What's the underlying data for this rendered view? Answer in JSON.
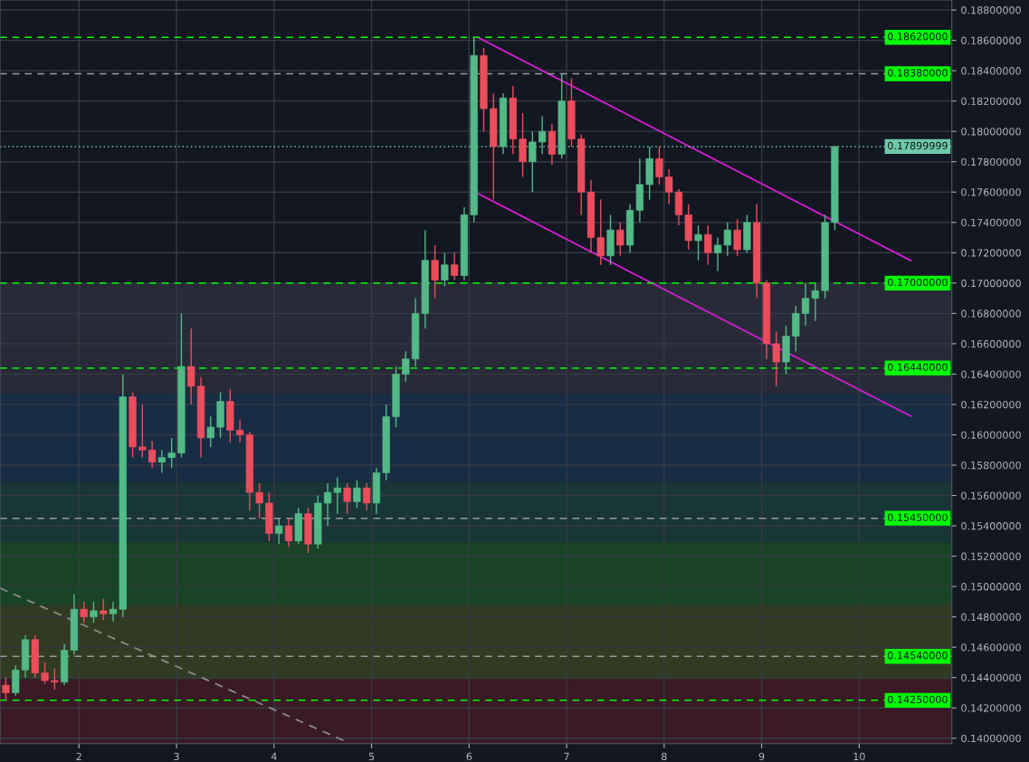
{
  "chart_data": {
    "type": "candlestick",
    "xlim": [
      1.19,
      10.95
    ],
    "xticks": [
      2,
      3,
      4,
      5,
      6,
      7,
      8,
      9,
      10
    ],
    "ylim": [
      0.13964,
      0.18866
    ],
    "yticks": [
      {
        "value": 0.14,
        "label": "0.14000000"
      },
      {
        "value": 0.142,
        "label": "0.14200000"
      },
      {
        "value": 0.144,
        "label": "0.14400000"
      },
      {
        "value": 0.146,
        "label": "0.14600000"
      },
      {
        "value": 0.148,
        "label": "0.14800000"
      },
      {
        "value": 0.15,
        "label": "0.15000000"
      },
      {
        "value": 0.152,
        "label": "0.15200000"
      },
      {
        "value": 0.154,
        "label": "0.15400000"
      },
      {
        "value": 0.156,
        "label": "0.15600000"
      },
      {
        "value": 0.158,
        "label": "0.15800000"
      },
      {
        "value": 0.16,
        "label": "0.16000000"
      },
      {
        "value": 0.162,
        "label": "0.16200000"
      },
      {
        "value": 0.164,
        "label": "0.16400000"
      },
      {
        "value": 0.166,
        "label": "0.16600000"
      },
      {
        "value": 0.168,
        "label": "0.16800000"
      },
      {
        "value": 0.17,
        "label": "0.17000000"
      },
      {
        "value": 0.172,
        "label": "0.17200000"
      },
      {
        "value": 0.174,
        "label": "0.17400000"
      },
      {
        "value": 0.176,
        "label": "0.17600000"
      },
      {
        "value": 0.178,
        "label": "0.17800000"
      },
      {
        "value": 0.18,
        "label": "0.18000000"
      },
      {
        "value": 0.182,
        "label": "0.18200000"
      },
      {
        "value": 0.184,
        "label": "0.18400000"
      },
      {
        "value": 0.186,
        "label": "0.18600000"
      },
      {
        "value": 0.188,
        "label": "0.18800000"
      }
    ],
    "grid": true,
    "series": [
      {
        "color": "#53b987",
        "x": [
          1.35,
          1.45,
          1.85,
          1.95,
          2.15,
          2.35,
          2.45,
          2.85,
          2.95,
          3.05,
          3.35,
          3.45,
          4.05,
          4.25,
          4.45,
          4.55,
          4.65,
          4.85,
          5.05,
          5.15,
          5.25,
          5.35,
          5.45,
          5.55,
          5.75,
          5.95,
          6.05,
          6.35,
          6.65,
          6.75,
          6.95,
          7.45,
          7.65,
          7.75,
          7.85,
          8.35,
          8.55,
          8.65,
          8.85,
          9.25,
          9.35,
          9.45,
          9.55,
          9.65,
          9.75
        ],
        "ohlc": [
          [
            0.143,
            0.1448,
            0.1428,
            0.1445
          ],
          [
            0.1445,
            0.1468,
            0.144,
            0.1465
          ],
          [
            0.1437,
            0.1462,
            0.1435,
            0.1458
          ],
          [
            0.1458,
            0.1495,
            0.1455,
            0.1485
          ],
          [
            0.148,
            0.149,
            0.1476,
            0.1484
          ],
          [
            0.1482,
            0.149,
            0.1477,
            0.1485
          ],
          [
            0.1485,
            0.164,
            0.148,
            0.1625
          ],
          [
            0.1582,
            0.159,
            0.1575,
            0.1585
          ],
          [
            0.1585,
            0.1598,
            0.1578,
            0.1588
          ],
          [
            0.1588,
            0.168,
            0.1585,
            0.1645
          ],
          [
            0.1598,
            0.1612,
            0.1592,
            0.1605
          ],
          [
            0.1605,
            0.1628,
            0.1598,
            0.1622
          ],
          [
            0.1535,
            0.1545,
            0.1528,
            0.154
          ],
          [
            0.153,
            0.1552,
            0.1528,
            0.1548
          ],
          [
            0.1528,
            0.156,
            0.1525,
            0.1555
          ],
          [
            0.1555,
            0.1568,
            0.154,
            0.1562
          ],
          [
            0.1562,
            0.1572,
            0.1548,
            0.1565
          ],
          [
            0.1556,
            0.157,
            0.1552,
            0.1565
          ],
          [
            0.1555,
            0.1578,
            0.1548,
            0.1575
          ],
          [
            0.1575,
            0.162,
            0.157,
            0.1612
          ],
          [
            0.1612,
            0.1645,
            0.1605,
            0.164
          ],
          [
            0.164,
            0.1655,
            0.1635,
            0.165
          ],
          [
            0.165,
            0.169,
            0.1645,
            0.168
          ],
          [
            0.168,
            0.1735,
            0.167,
            0.1715
          ],
          [
            0.1702,
            0.172,
            0.1698,
            0.1712
          ],
          [
            0.1705,
            0.175,
            0.1702,
            0.1745
          ],
          [
            0.1745,
            0.1862,
            0.174,
            0.185
          ],
          [
            0.179,
            0.1825,
            0.1785,
            0.1822
          ],
          [
            0.178,
            0.18,
            0.176,
            0.1793
          ],
          [
            0.1793,
            0.181,
            0.1785,
            0.18
          ],
          [
            0.1785,
            0.1838,
            0.1782,
            0.182
          ],
          [
            0.1718,
            0.1745,
            0.1712,
            0.1735
          ],
          [
            0.1725,
            0.1752,
            0.172,
            0.1748
          ],
          [
            0.1748,
            0.1782,
            0.174,
            0.1765
          ],
          [
            0.1765,
            0.179,
            0.1755,
            0.1782
          ],
          [
            0.1728,
            0.1738,
            0.1715,
            0.1732
          ],
          [
            0.172,
            0.173,
            0.1708,
            0.1725
          ],
          [
            0.1725,
            0.174,
            0.1718,
            0.1735
          ],
          [
            0.1722,
            0.1745,
            0.172,
            0.174
          ],
          [
            0.1648,
            0.1672,
            0.164,
            0.1665
          ],
          [
            0.1665,
            0.1685,
            0.1655,
            0.168
          ],
          [
            0.168,
            0.17,
            0.1672,
            0.169
          ],
          [
            0.169,
            0.17,
            0.1675,
            0.1695
          ],
          [
            0.1695,
            0.1745,
            0.169,
            0.174
          ],
          [
            0.174,
            0.179,
            0.1735,
            0.179
          ]
        ]
      },
      {
        "color": "#eb4d5c",
        "x": [
          1.25,
          1.55,
          1.65,
          1.75,
          2.05,
          2.25,
          2.55,
          2.65,
          2.75,
          3.15,
          3.25,
          3.55,
          3.65,
          3.75,
          3.85,
          3.95,
          4.15,
          4.35,
          4.75,
          4.95,
          5.65,
          5.85,
          6.15,
          6.25,
          6.45,
          6.55,
          6.85,
          7.05,
          7.15,
          7.25,
          7.35,
          7.55,
          7.95,
          8.05,
          8.15,
          8.25,
          8.45,
          8.75,
          8.95,
          9.05,
          9.15
        ],
        "ohlc": [
          [
            0.1435,
            0.144,
            0.1425,
            0.143
          ],
          [
            0.1465,
            0.1468,
            0.144,
            0.1443
          ],
          [
            0.1443,
            0.145,
            0.1436,
            0.1438
          ],
          [
            0.1438,
            0.1446,
            0.1432,
            0.1437
          ],
          [
            0.1485,
            0.149,
            0.1476,
            0.148
          ],
          [
            0.1484,
            0.1492,
            0.1478,
            0.1482
          ],
          [
            0.1625,
            0.1628,
            0.1585,
            0.1592
          ],
          [
            0.1592,
            0.162,
            0.1585,
            0.159
          ],
          [
            0.159,
            0.1596,
            0.1578,
            0.1582
          ],
          [
            0.1645,
            0.167,
            0.162,
            0.1632
          ],
          [
            0.1632,
            0.1638,
            0.1585,
            0.1598
          ],
          [
            0.1622,
            0.163,
            0.1595,
            0.1603
          ],
          [
            0.1603,
            0.161,
            0.1595,
            0.16
          ],
          [
            0.16,
            0.1602,
            0.155,
            0.1562
          ],
          [
            0.1562,
            0.1568,
            0.1545,
            0.1555
          ],
          [
            0.1555,
            0.1562,
            0.153,
            0.1535
          ],
          [
            0.154,
            0.1545,
            0.1526,
            0.153
          ],
          [
            0.1548,
            0.1552,
            0.1522,
            0.1528
          ],
          [
            0.1565,
            0.1568,
            0.1548,
            0.1556
          ],
          [
            0.1565,
            0.1568,
            0.155,
            0.1555
          ],
          [
            0.1715,
            0.1725,
            0.169,
            0.1702
          ],
          [
            0.1712,
            0.172,
            0.1702,
            0.1705
          ],
          [
            0.185,
            0.1855,
            0.18,
            0.1815
          ],
          [
            0.1815,
            0.1825,
            0.1755,
            0.179
          ],
          [
            0.1822,
            0.183,
            0.1785,
            0.1795
          ],
          [
            0.1795,
            0.1812,
            0.177,
            0.178
          ],
          [
            0.18,
            0.1805,
            0.1778,
            0.1785
          ],
          [
            0.182,
            0.1835,
            0.179,
            0.1795
          ],
          [
            0.1795,
            0.1798,
            0.1745,
            0.176
          ],
          [
            0.176,
            0.1768,
            0.172,
            0.173
          ],
          [
            0.173,
            0.1755,
            0.1712,
            0.1718
          ],
          [
            0.1735,
            0.174,
            0.1718,
            0.1725
          ],
          [
            0.1782,
            0.179,
            0.1765,
            0.177
          ],
          [
            0.177,
            0.1775,
            0.1752,
            0.176
          ],
          [
            0.176,
            0.1762,
            0.1738,
            0.1745
          ],
          [
            0.1745,
            0.1752,
            0.1722,
            0.1728
          ],
          [
            0.1732,
            0.1738,
            0.1712,
            0.172
          ],
          [
            0.1735,
            0.1742,
            0.1718,
            0.1722
          ],
          [
            0.174,
            0.1752,
            0.169,
            0.17
          ],
          [
            0.17,
            0.1702,
            0.165,
            0.166
          ],
          [
            0.166,
            0.1668,
            0.1632,
            0.1648
          ]
        ]
      },
      {
        "type": "line",
        "color": "#d41ed4",
        "x": [
          6.09,
          10.53
        ],
        "values": [
          0.1862,
          0.17148
        ]
      },
      {
        "type": "line",
        "color": "#d41ed4",
        "x": [
          6.09,
          10.53
        ],
        "values": [
          0.1759,
          0.16123
        ]
      },
      {
        "type": "line",
        "color": "#8a8a8a",
        "line_style": "dashed",
        "x": [
          1.19,
          4.73
        ],
        "values": [
          0.1499,
          0.1398
        ]
      }
    ],
    "ref_lines": [
      {
        "axis": "y",
        "value": 0.1862,
        "label": "0.18620000",
        "color": "#00ff00",
        "line_style": "dashed"
      },
      {
        "axis": "y",
        "value": 0.1838,
        "label": "0.18380000",
        "color": "#9a9a9a",
        "line_style": "dashed"
      },
      {
        "axis": "y",
        "value": 0.17899999,
        "label": "0.17899999",
        "color": "#6fc9a8",
        "line_style": "dotted"
      },
      {
        "axis": "y",
        "value": 0.17,
        "label": "0.17000000",
        "color": "#00ff00",
        "line_style": "dashed"
      },
      {
        "axis": "y",
        "value": 0.1644,
        "label": "0.16440000",
        "color": "#00ff00",
        "line_style": "dashed"
      },
      {
        "axis": "y",
        "value": 0.1545,
        "label": "0.15450000",
        "color": "#9a9a9a",
        "line_style": "dashed"
      },
      {
        "axis": "y",
        "value": 0.1454,
        "label": "0.14540000",
        "color": "#9a9a9a",
        "line_style": "dashed"
      },
      {
        "axis": "y",
        "value": 0.1425,
        "label": "0.14250000",
        "color": "#00ff00",
        "line_style": "dashed"
      }
    ],
    "bands": [
      {
        "axis": "y",
        "from": 0.1627,
        "to": 0.17,
        "color": "#3a3d48"
      },
      {
        "axis": "y",
        "from": 0.1569,
        "to": 0.1627,
        "color": "#1e4060"
      },
      {
        "axis": "y",
        "from": 0.1529,
        "to": 0.1569,
        "color": "#1d5048"
      },
      {
        "axis": "y",
        "from": 0.1488,
        "to": 0.1529,
        "color": "#1e6a28"
      },
      {
        "axis": "y",
        "from": 0.1439,
        "to": 0.1488,
        "color": "#4a5a20"
      },
      {
        "axis": "y",
        "from": 0.13964,
        "to": 0.1439,
        "color": "#5a1e28"
      }
    ]
  }
}
